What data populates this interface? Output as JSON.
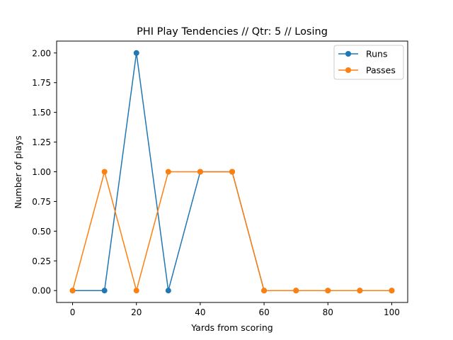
{
  "chart_data": {
    "type": "line",
    "title": "PHI Play Tendencies // Qtr: 5 // Losing",
    "xlabel": "Yards from scoring",
    "ylabel": "Number of plays",
    "x": [
      0,
      10,
      20,
      30,
      40,
      50,
      60,
      70,
      80,
      90,
      100
    ],
    "xlim": [
      -5,
      105
    ],
    "ylim": [
      -0.1,
      2.1
    ],
    "xticks": [
      0,
      20,
      40,
      60,
      80,
      100
    ],
    "xtick_labels": [
      "0",
      "20",
      "40",
      "60",
      "80",
      "100"
    ],
    "yticks": [
      0,
      0.25,
      0.5,
      0.75,
      1.0,
      1.25,
      1.5,
      1.75,
      2.0
    ],
    "ytick_labels": [
      "0.00",
      "0.25",
      "0.50",
      "0.75",
      "1.00",
      "1.25",
      "1.50",
      "1.75",
      "2.00"
    ],
    "grid": false,
    "legend_position": "top-right",
    "series": [
      {
        "name": "Runs",
        "color": "#1f77b4",
        "marker": "circle",
        "values": [
          0,
          0,
          2,
          0,
          1,
          1,
          0,
          0,
          0,
          0,
          0
        ]
      },
      {
        "name": "Passes",
        "color": "#ff7f0e",
        "marker": "circle",
        "values": [
          0,
          1,
          0,
          1,
          1,
          1,
          0,
          0,
          0,
          0,
          0
        ]
      }
    ]
  }
}
